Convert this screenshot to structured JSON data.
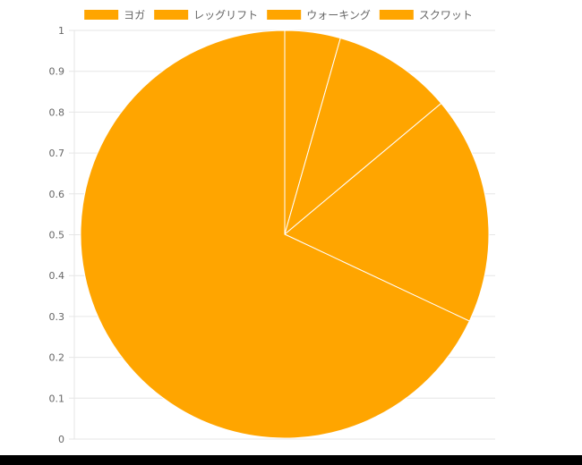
{
  "chart_data": {
    "type": "pie",
    "categories": [
      "ヨガ",
      "レッグリフト",
      "ウォーキング",
      "スクワット"
    ],
    "values": [
      4.4,
      9.5,
      18.1,
      68.0
    ],
    "color": "#FFA500",
    "slice_border_color": "#FFFFFF",
    "legend_position": "top",
    "yticks": [
      "0",
      "0.1",
      "0.2",
      "0.3",
      "0.4",
      "0.5",
      "0.6",
      "0.7",
      "0.8",
      "0.9",
      "1"
    ],
    "ylim": [
      0,
      1
    ],
    "grid": true
  }
}
